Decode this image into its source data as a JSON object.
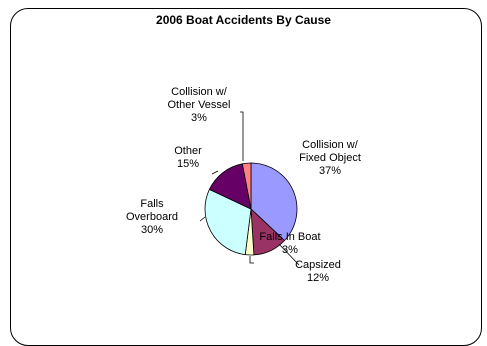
{
  "chart_data": {
    "type": "pie",
    "title": "2006 Boat Accidents By Cause",
    "slices": [
      {
        "label_lines": [
          "Collision w/",
          "Fixed Object"
        ],
        "pct_label": "37%",
        "value": 37,
        "color": "#9999ff"
      },
      {
        "label_lines": [
          "Capsized"
        ],
        "pct_label": "12%",
        "value": 12,
        "color": "#993366"
      },
      {
        "label_lines": [
          "Falls In Boat"
        ],
        "pct_label": "3%",
        "value": 3,
        "color": "#ffffcc"
      },
      {
        "label_lines": [
          "Falls",
          "Overboard"
        ],
        "pct_label": "30%",
        "value": 30,
        "color": "#ccffff"
      },
      {
        "label_lines": [
          "Other"
        ],
        "pct_label": "15%",
        "value": 15,
        "color": "#660066"
      },
      {
        "label_lines": [
          "Collision w/",
          "Other Vessel"
        ],
        "pct_label": "3%",
        "value": 3,
        "color": "#ff8080"
      }
    ]
  }
}
